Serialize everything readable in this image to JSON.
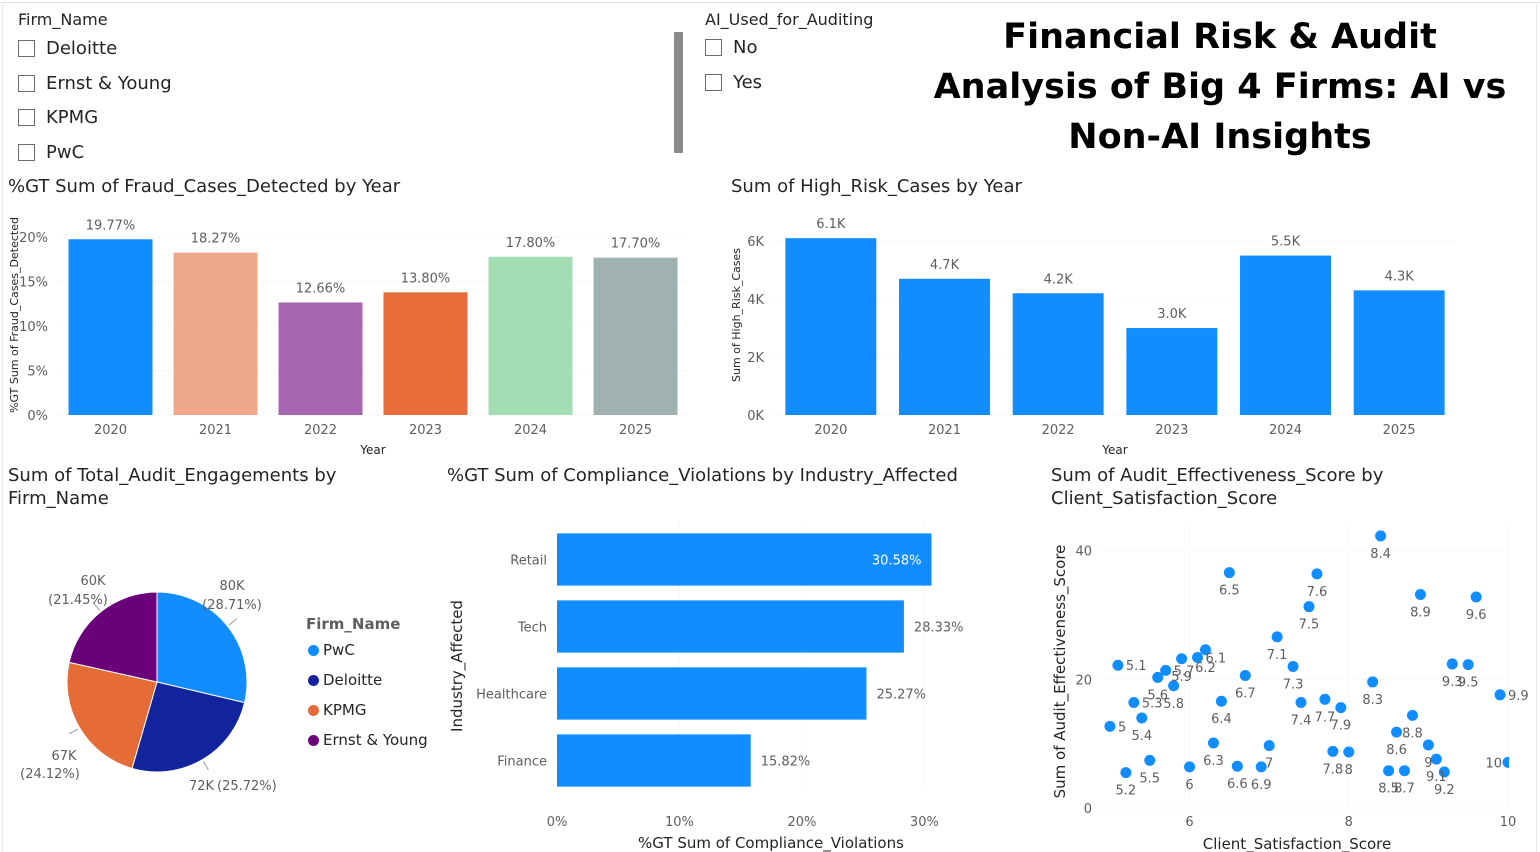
{
  "title": "Financial Risk & Audit Analysis of Big 4 Firms: AI vs Non-AI Insights",
  "slicers": {
    "firm": {
      "title": "Firm_Name",
      "items": [
        "Deloitte",
        "Ernst & Young",
        "KPMG",
        "PwC"
      ]
    },
    "ai": {
      "title": "AI_Used_for_Auditing",
      "items": [
        "No",
        "Yes"
      ]
    }
  },
  "colors": {
    "accent": "#118DFF",
    "border": "#e0e0e0"
  },
  "charts": {
    "fraud": {
      "title": "%GT Sum of Fraud_Cases_Detected by Year"
    },
    "highrisk": {
      "title": "Sum of High_Risk_Cases by Year"
    },
    "engagements": {
      "title": "Sum of Total_Audit_Engagements by Firm_Name",
      "legend_title": "Firm_Name"
    },
    "compliance": {
      "title": "%GT Sum of Compliance_Violations by Industry_Affected"
    },
    "effectiveness": {
      "title": "Sum of Audit_Effectiveness_Score by Client_Satisfaction_Score"
    }
  },
  "chart_data": [
    {
      "type": "bar",
      "id": "fraud",
      "categories": [
        "2020",
        "2021",
        "2022",
        "2023",
        "2024",
        "2025"
      ],
      "values": [
        19.77,
        18.27,
        12.66,
        13.8,
        17.8,
        17.7
      ],
      "data_labels": [
        "19.77%",
        "18.27%",
        "12.66%",
        "13.80%",
        "17.80%",
        "17.70%"
      ],
      "colors": [
        "#118DFF",
        "#EFA98A",
        "#A666B0",
        "#E76D3A",
        "#A3DDB3",
        "#9FB2AF"
      ],
      "xlabel": "Year",
      "ylabel": "%GT Sum of Fraud_Cases_Detected",
      "ylim": [
        0,
        22.5
      ],
      "yticks": [
        0,
        5,
        10,
        15,
        20
      ],
      "ytick_labels": [
        "0%",
        "5%",
        "10%",
        "15%",
        "20%"
      ]
    },
    {
      "type": "bar",
      "id": "highrisk",
      "categories": [
        "2020",
        "2021",
        "2022",
        "2023",
        "2024",
        "2025"
      ],
      "values": [
        6100,
        4700,
        4200,
        3000,
        5500,
        4300
      ],
      "data_labels": [
        "6.1K",
        "4.7K",
        "4.2K",
        "3.0K",
        "5.5K",
        "4.3K"
      ],
      "color": "#118DFF",
      "xlabel": "Year",
      "ylabel": "Sum of High_Risk_Cases",
      "ylim": [
        0,
        6900
      ],
      "yticks": [
        0,
        2000,
        4000,
        6000
      ],
      "ytick_labels": [
        "0K",
        "2K",
        "4K",
        "6K"
      ]
    },
    {
      "type": "pie",
      "id": "engagements",
      "labels": [
        "PwC",
        "Deloitte",
        "KPMG",
        "Ernst & Young"
      ],
      "values": [
        80,
        72,
        67,
        60
      ],
      "value_labels": [
        "80K",
        "72K",
        "67K",
        "60K"
      ],
      "percent_labels": [
        "(28.71%)",
        "(25.72%)",
        "(24.12%)",
        "(21.45%)"
      ],
      "colors": [
        "#118DFF",
        "#12239E",
        "#E66C37",
        "#6B007B"
      ]
    },
    {
      "type": "bar",
      "id": "compliance",
      "orientation": "horizontal",
      "categories": [
        "Retail",
        "Tech",
        "Healthcare",
        "Finance"
      ],
      "values": [
        30.58,
        28.33,
        25.27,
        15.82
      ],
      "data_labels": [
        "30.58%",
        "28.33%",
        "25.27%",
        "15.82%"
      ],
      "color": "#118DFF",
      "xlabel": "%GT Sum of Compliance_Violations",
      "ylabel": "Industry_Affected",
      "xlim": [
        0,
        32.5
      ],
      "xticks": [
        0,
        10,
        20,
        30
      ],
      "xtick_labels": [
        "0%",
        "10%",
        "20%",
        "30%"
      ]
    },
    {
      "type": "scatter",
      "id": "effectiveness",
      "xlabel": "Client_Satisfaction_Score",
      "ylabel": "Sum of Audit_Effectiveness_Score",
      "xlim": [
        4.9,
        10
      ],
      "ylim": [
        0,
        44
      ],
      "xticks": [
        6,
        8,
        10
      ],
      "yticks": [
        0,
        20,
        40
      ],
      "color": "#118DFF",
      "points": [
        {
          "x": 5.0,
          "y": 12.7,
          "label": "5"
        },
        {
          "x": 5.1,
          "y": 22.2,
          "label": "5.1"
        },
        {
          "x": 5.2,
          "y": 5.5,
          "label": "5.2"
        },
        {
          "x": 5.3,
          "y": 16.4,
          "label": "5.3"
        },
        {
          "x": 5.4,
          "y": 14.0,
          "label": "5.4"
        },
        {
          "x": 5.5,
          "y": 7.4,
          "label": "5.5"
        },
        {
          "x": 5.6,
          "y": 20.3,
          "label": "5.6"
        },
        {
          "x": 5.7,
          "y": 21.4,
          "label": "5.7"
        },
        {
          "x": 5.8,
          "y": 19.0,
          "label": "5.8"
        },
        {
          "x": 5.9,
          "y": 23.2,
          "label": "5.9"
        },
        {
          "x": 6.0,
          "y": 6.4,
          "label": "6"
        },
        {
          "x": 6.1,
          "y": 23.4,
          "label": "6.1"
        },
        {
          "x": 6.2,
          "y": 24.6,
          "label": "6.2"
        },
        {
          "x": 6.3,
          "y": 10.1,
          "label": "6.3"
        },
        {
          "x": 6.4,
          "y": 16.6,
          "label": "6.4"
        },
        {
          "x": 6.5,
          "y": 36.6,
          "label": "6.5"
        },
        {
          "x": 6.6,
          "y": 6.5,
          "label": "6.6"
        },
        {
          "x": 6.7,
          "y": 20.6,
          "label": "6.7"
        },
        {
          "x": 6.9,
          "y": 6.4,
          "label": "6.9"
        },
        {
          "x": 7.0,
          "y": 9.7,
          "label": "7"
        },
        {
          "x": 7.1,
          "y": 26.6,
          "label": "7.1"
        },
        {
          "x": 7.3,
          "y": 22.0,
          "label": "7.3"
        },
        {
          "x": 7.4,
          "y": 16.4,
          "label": "7.4"
        },
        {
          "x": 7.5,
          "y": 31.3,
          "label": "7.5"
        },
        {
          "x": 7.6,
          "y": 36.4,
          "label": "7.6"
        },
        {
          "x": 7.7,
          "y": 16.9,
          "label": "7.7"
        },
        {
          "x": 7.8,
          "y": 8.8,
          "label": "7.8"
        },
        {
          "x": 7.9,
          "y": 15.6,
          "label": "7.9"
        },
        {
          "x": 8.0,
          "y": 8.7,
          "label": "8"
        },
        {
          "x": 8.3,
          "y": 19.6,
          "label": "8.3"
        },
        {
          "x": 8.4,
          "y": 42.3,
          "label": "8.4"
        },
        {
          "x": 8.5,
          "y": 5.8,
          "label": "8.5"
        },
        {
          "x": 8.6,
          "y": 11.8,
          "label": "8.6"
        },
        {
          "x": 8.7,
          "y": 5.8,
          "label": "8.7"
        },
        {
          "x": 8.8,
          "y": 14.4,
          "label": "8.8"
        },
        {
          "x": 8.9,
          "y": 33.2,
          "label": "8.9"
        },
        {
          "x": 9.0,
          "y": 9.8,
          "label": "9"
        },
        {
          "x": 9.1,
          "y": 7.6,
          "label": "9.1"
        },
        {
          "x": 9.2,
          "y": 5.6,
          "label": "9.2"
        },
        {
          "x": 9.3,
          "y": 22.4,
          "label": "9.3"
        },
        {
          "x": 9.5,
          "y": 22.3,
          "label": "9.5"
        },
        {
          "x": 9.6,
          "y": 32.8,
          "label": "9.6"
        },
        {
          "x": 9.9,
          "y": 17.6,
          "label": "9.9"
        },
        {
          "x": 10.0,
          "y": 7.1,
          "label": "10"
        }
      ]
    }
  ]
}
